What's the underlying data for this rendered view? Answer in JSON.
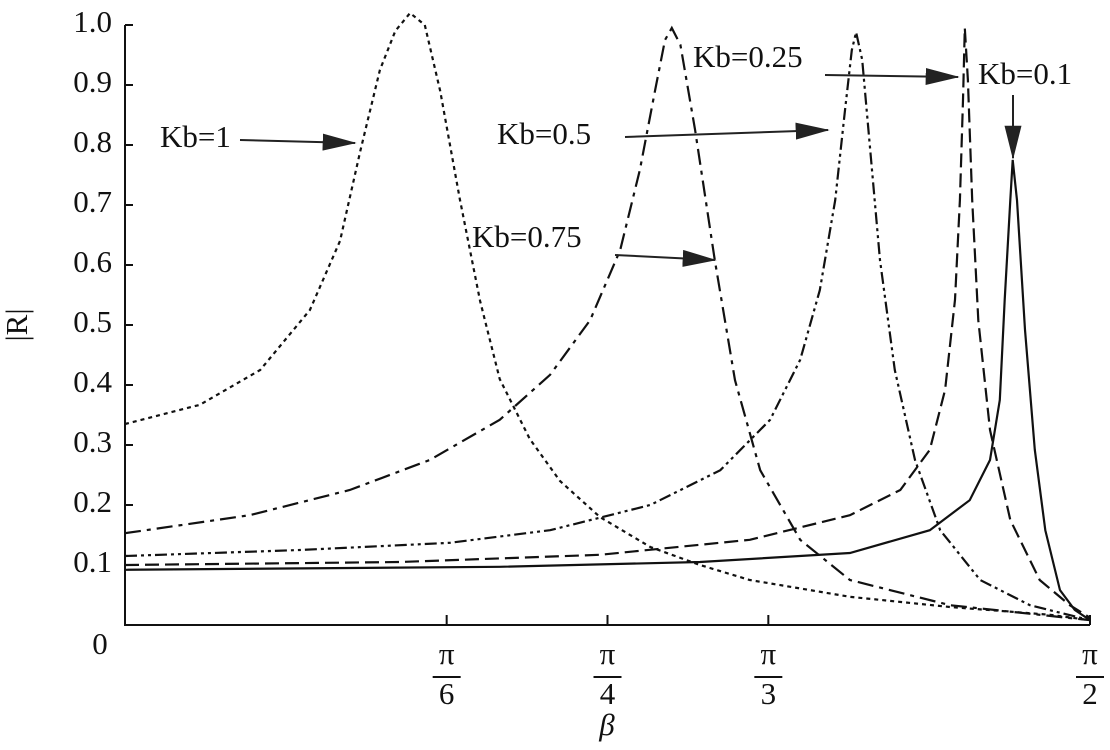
{
  "chart_data": {
    "type": "line",
    "ylabel": "|R|",
    "xlabel": "β",
    "xlim": [
      0,
      1.5708
    ],
    "ylim": [
      0,
      1.0
    ],
    "xticks": [
      {
        "value": 0,
        "label": [
          "0"
        ]
      },
      {
        "value": 0.5236,
        "label": [
          "π",
          "6"
        ]
      },
      {
        "value": 0.7854,
        "label": [
          "π",
          "4"
        ]
      },
      {
        "value": 1.0472,
        "label": [
          "π",
          "3"
        ]
      },
      {
        "value": 1.5708,
        "label": [
          "π",
          "2"
        ]
      }
    ],
    "yticks": [
      0.1,
      0.2,
      0.3,
      0.4,
      0.5,
      0.6,
      0.7,
      0.8,
      0.9,
      {
        "value": 1.0,
        "label": "1.0"
      }
    ],
    "series": [
      {
        "name": "Kb=1",
        "color": "#111",
        "dash": "4 4",
        "x": [
          0,
          0.122,
          0.22,
          0.301,
          0.35,
          0.383,
          0.415,
          0.44,
          0.464,
          0.488,
          0.513,
          0.545,
          0.578,
          0.61,
          0.659,
          0.708,
          0.773,
          0.855,
          0.936,
          1.017,
          1.18,
          1.343,
          1.506,
          1.571
        ],
        "values": [
          0.335,
          0.367,
          0.425,
          0.525,
          0.64,
          0.79,
          0.925,
          0.99,
          1.02,
          1.0,
          0.89,
          0.71,
          0.54,
          0.41,
          0.31,
          0.24,
          0.18,
          0.13,
          0.1,
          0.075,
          0.047,
          0.03,
          0.017,
          0.008
        ]
      },
      {
        "name": "Kb=0.75",
        "color": "#111",
        "dash": "16 6 4 6",
        "x": [
          0,
          0.203,
          0.366,
          0.496,
          0.61,
          0.692,
          0.757,
          0.806,
          0.838,
          0.863,
          0.879,
          0.89,
          0.904,
          0.928,
          0.96,
          0.993,
          1.034,
          1.099,
          1.18,
          1.343,
          1.571
        ],
        "values": [
          0.153,
          0.183,
          0.225,
          0.275,
          0.342,
          0.417,
          0.508,
          0.625,
          0.758,
          0.892,
          0.975,
          0.995,
          0.967,
          0.825,
          0.608,
          0.408,
          0.258,
          0.142,
          0.075,
          0.033,
          0.008
        ]
      },
      {
        "name": "Kb=0.5",
        "color": "#111",
        "dash": "12 4 3 4 3 4",
        "x": [
          0,
          0.285,
          0.529,
          0.692,
          0.855,
          0.969,
          1.05,
          1.099,
          1.131,
          1.156,
          1.172,
          1.183,
          1.19,
          1.2,
          1.213,
          1.229,
          1.253,
          1.286,
          1.327,
          1.392,
          1.473,
          1.571
        ],
        "values": [
          0.115,
          0.125,
          0.137,
          0.158,
          0.2,
          0.258,
          0.342,
          0.442,
          0.558,
          0.708,
          0.858,
          0.958,
          0.988,
          0.942,
          0.792,
          0.608,
          0.425,
          0.275,
          0.158,
          0.075,
          0.033,
          0.008
        ]
      },
      {
        "name": "Kb=0.25",
        "color": "#111",
        "dash": "14 6",
        "x": [
          0,
          0.448,
          0.773,
          1.017,
          1.18,
          1.262,
          1.31,
          1.335,
          1.351,
          1.359,
          1.364,
          1.367,
          1.372,
          1.379,
          1.389,
          1.408,
          1.441,
          1.489,
          1.538,
          1.571
        ],
        "values": [
          0.1,
          0.105,
          0.117,
          0.142,
          0.183,
          0.225,
          0.292,
          0.392,
          0.542,
          0.708,
          0.875,
          0.995,
          0.908,
          0.708,
          0.508,
          0.325,
          0.175,
          0.075,
          0.033,
          0.012
        ]
      },
      {
        "name": "Kb=0.1",
        "color": "#111",
        "dash": "",
        "x": [
          0,
          0.61,
          0.936,
          1.18,
          1.31,
          1.375,
          1.408,
          1.424,
          1.432,
          1.441,
          1.445,
          1.452,
          1.465,
          1.481,
          1.498,
          1.522,
          1.546,
          1.571
        ],
        "values": [
          0.092,
          0.097,
          0.105,
          0.12,
          0.158,
          0.208,
          0.275,
          0.375,
          0.542,
          0.708,
          0.775,
          0.708,
          0.492,
          0.292,
          0.158,
          0.058,
          0.025,
          0.008
        ]
      }
    ]
  }
}
